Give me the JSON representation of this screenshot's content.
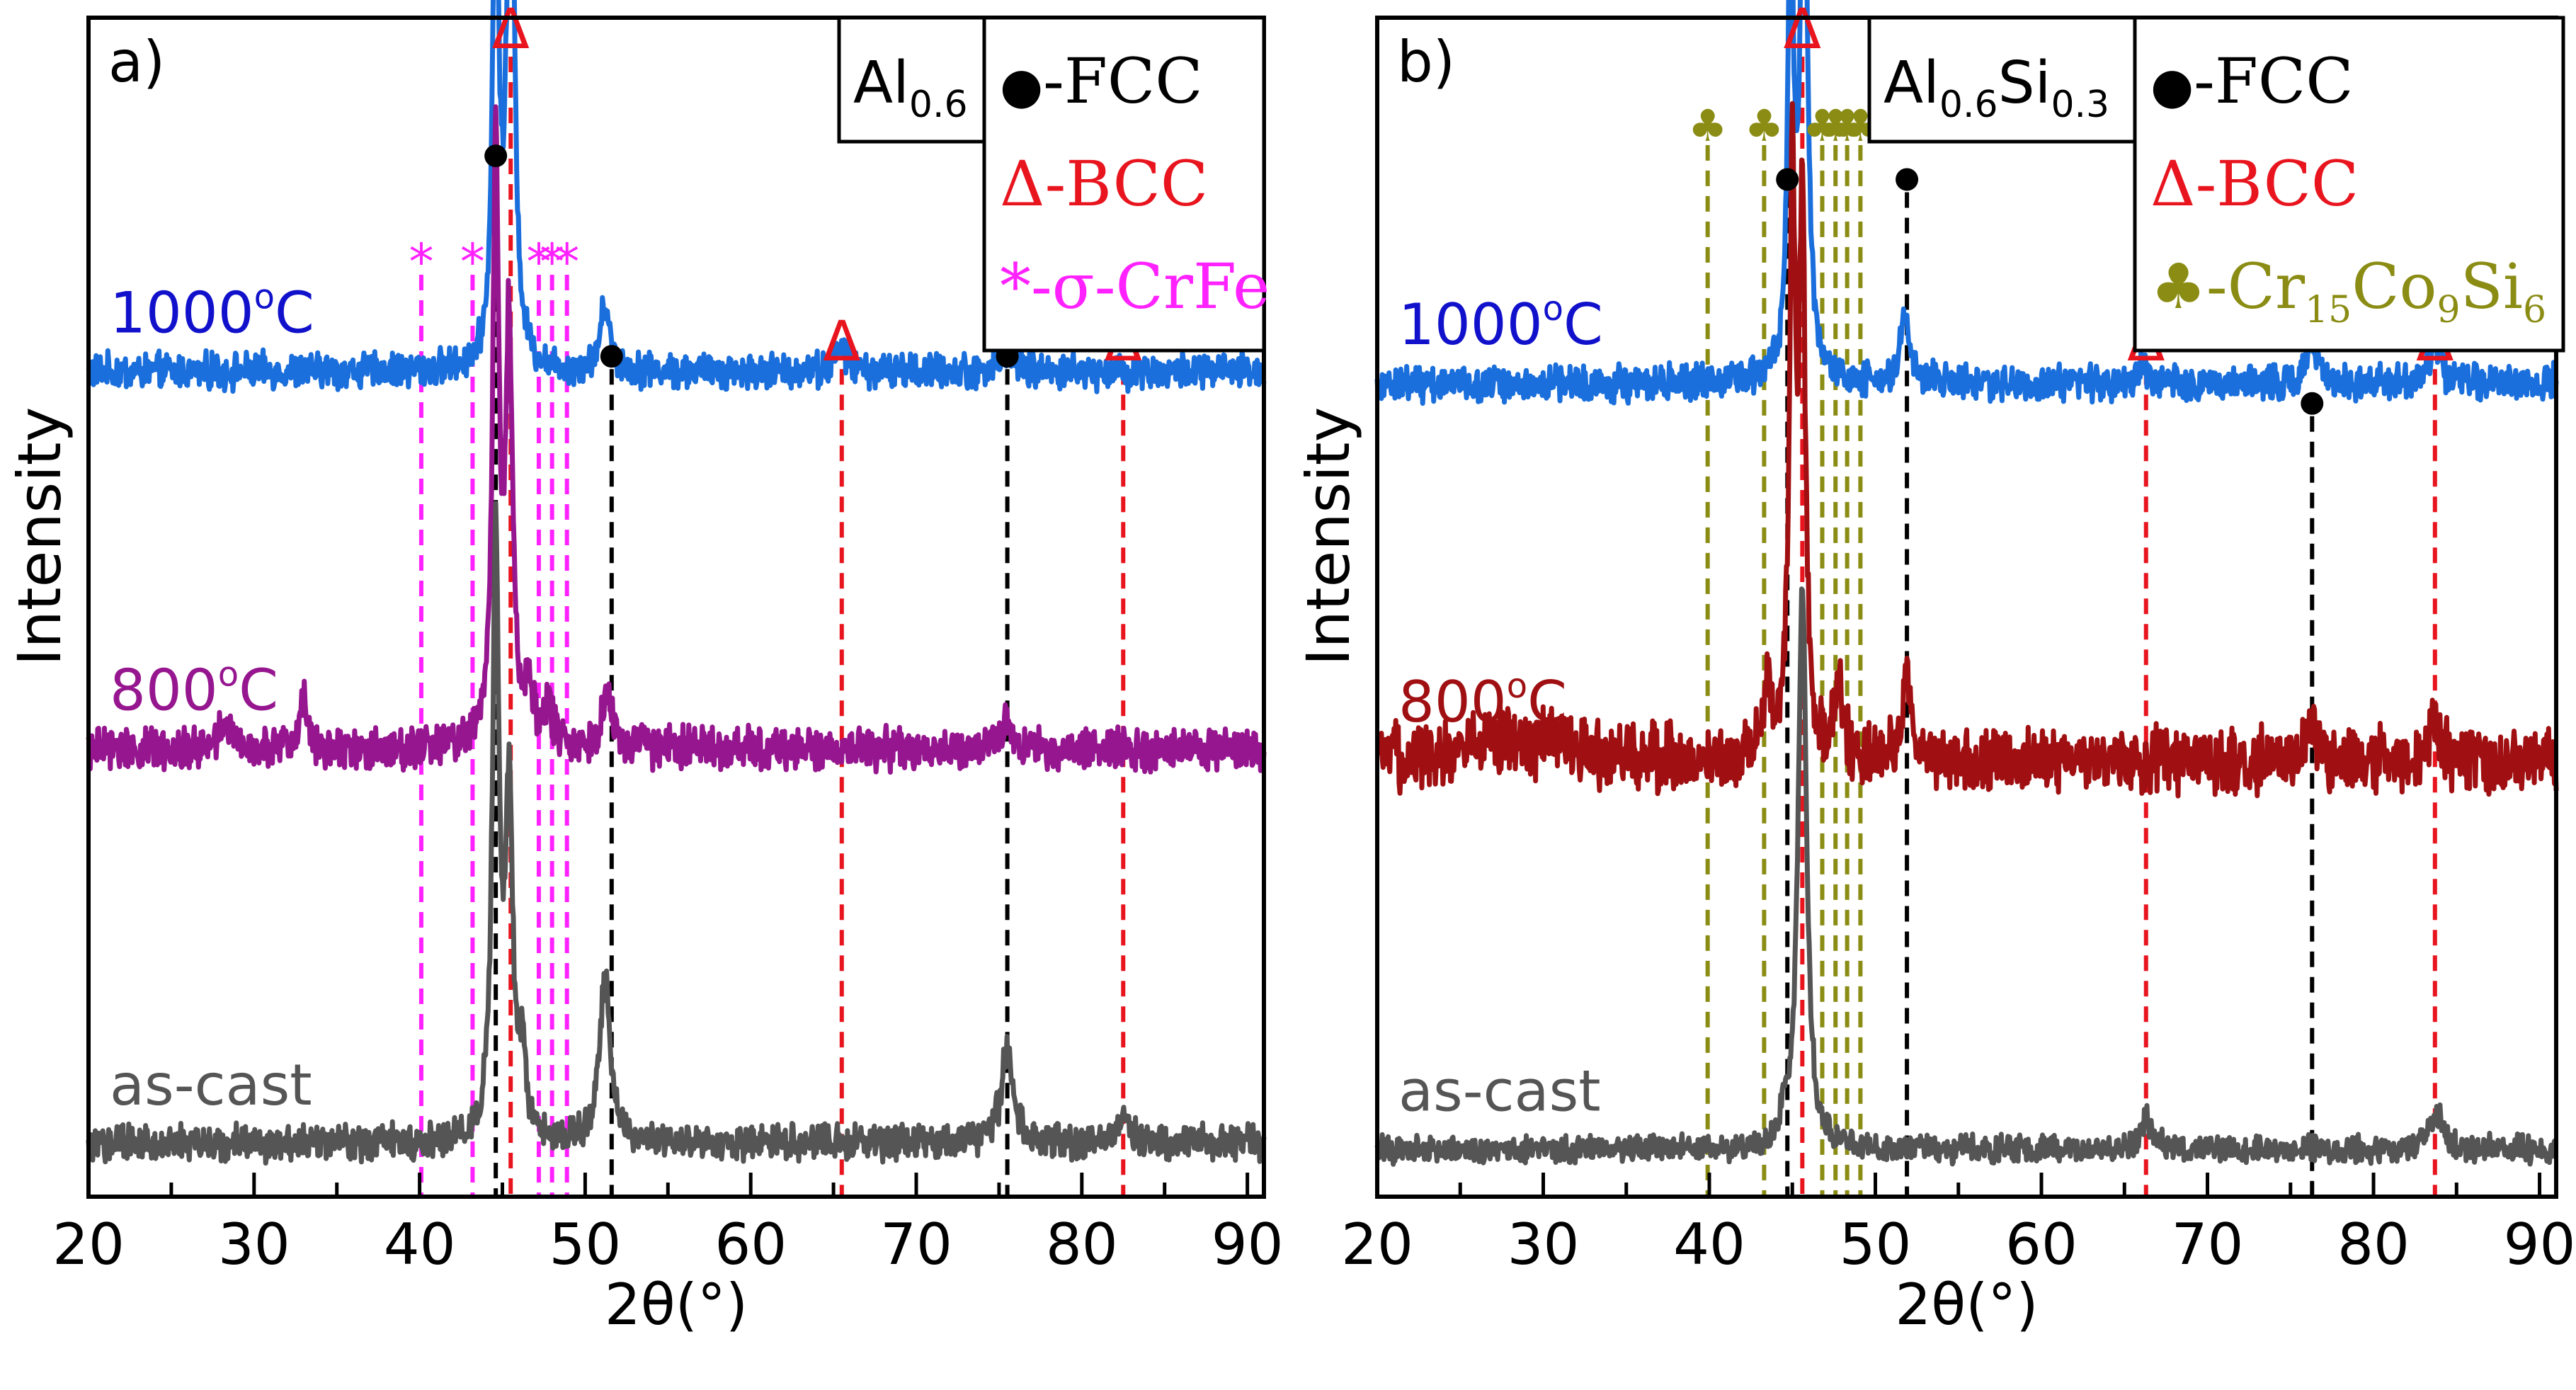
{
  "colors": {
    "c1000": "#1a6fdc",
    "c800_a": "#96168f",
    "c800_b": "#a01012",
    "cast": "#555555",
    "fcc": "#000000",
    "bcc": "#e8141e",
    "sigma": "#ff22ff",
    "crcosi": "#8a8c14",
    "label1000": "#1111cc"
  },
  "chart_data": [
    {
      "type": "line",
      "panel_label": "a)",
      "xlabel": "2θ(°)",
      "ylabel": "Intensity",
      "xlim": [
        20,
        91
      ],
      "xticks": [
        20,
        30,
        40,
        50,
        60,
        70,
        80,
        90
      ],
      "tick_labels": [
        "20",
        "30",
        "40",
        "50",
        "60",
        "70",
        "80",
        "90"
      ],
      "composition": {
        "base": "Al",
        "sub": "0.6"
      },
      "legend": [
        {
          "marker": "●",
          "text": "-FCC",
          "color_key": "fcc"
        },
        {
          "marker": "Δ",
          "text": "-BCC",
          "color_key": "bcc"
        },
        {
          "marker": "*",
          "text": "-σ-CrFe",
          "color_key": "sigma"
        }
      ],
      "series": [
        {
          "name": "1000°C",
          "label_base": "1000",
          "label_sup": "o",
          "label_end": "C",
          "color_key": "c1000",
          "label_color_key": "label1000",
          "baseline": 0.7,
          "noise": 0.012,
          "peaks": [
            [
              44.6,
              0.42,
              0.22
            ],
            [
              45.5,
              0.52,
              0.25
            ],
            [
              51.2,
              0.055,
              0.35
            ],
            [
              65.5,
              0.02,
              0.45
            ],
            [
              75.5,
              0.02,
              0.4
            ]
          ]
        },
        {
          "name": "800°C",
          "label_base": "800",
          "label_sup": "o",
          "label_end": "C",
          "color_key": "c800_a",
          "label_color_key": "c800_a",
          "baseline": 0.38,
          "noise": 0.014,
          "peaks": [
            [
              44.6,
              0.5,
              0.22
            ],
            [
              45.4,
              0.35,
              0.25
            ],
            [
              51.3,
              0.04,
              0.45
            ],
            [
              28.3,
              0.025,
              0.35
            ],
            [
              33.0,
              0.04,
              0.3
            ],
            [
              46.6,
              0.05,
              0.3
            ],
            [
              47.8,
              0.03,
              0.3
            ],
            [
              75.5,
              0.025,
              0.35
            ]
          ]
        },
        {
          "name": "as-cast",
          "label_base": "as-cast",
          "label_sup": "",
          "label_end": "",
          "color_key": "cast",
          "label_color_key": "cast",
          "baseline": 0.045,
          "noise": 0.012,
          "peaks": [
            [
              44.6,
              0.5,
              0.24
            ],
            [
              45.4,
              0.28,
              0.26
            ],
            [
              46.2,
              0.06,
              0.3
            ],
            [
              51.2,
              0.14,
              0.38
            ],
            [
              75.5,
              0.08,
              0.45
            ],
            [
              82.6,
              0.02,
              0.5
            ]
          ]
        }
      ],
      "reference_lines": [
        {
          "x": 44.6,
          "color_key": "fcc",
          "marker": "●",
          "top": 0.89
        },
        {
          "x": 51.6,
          "color_key": "fcc",
          "marker": "●",
          "top": 0.72
        },
        {
          "x": 75.5,
          "color_key": "fcc",
          "marker": "●",
          "top": 0.72
        },
        {
          "x": 45.5,
          "color_key": "bcc",
          "marker": "Δ",
          "top": 0.985
        },
        {
          "x": 65.5,
          "color_key": "bcc",
          "marker": "Δ",
          "top": 0.72
        },
        {
          "x": 82.5,
          "color_key": "bcc",
          "marker": "Δ",
          "top": 0.72
        },
        {
          "x": 40.1,
          "color_key": "sigma",
          "marker": "*",
          "top": 0.8
        },
        {
          "x": 43.2,
          "color_key": "sigma",
          "marker": "*",
          "top": 0.8
        },
        {
          "x": 47.2,
          "color_key": "sigma",
          "marker": "*",
          "top": 0.8
        },
        {
          "x": 48.0,
          "color_key": "sigma",
          "marker": "*",
          "top": 0.8
        },
        {
          "x": 48.9,
          "color_key": "sigma",
          "marker": "*",
          "top": 0.8
        }
      ]
    },
    {
      "type": "line",
      "panel_label": "b)",
      "xlabel": "2θ(°)",
      "ylabel": "Intensity",
      "xlim": [
        20,
        91
      ],
      "xticks": [
        20,
        30,
        40,
        50,
        60,
        70,
        80,
        90
      ],
      "tick_labels": [
        "20",
        "30",
        "40",
        "50",
        "60",
        "70",
        "80",
        "90"
      ],
      "composition": {
        "base": "Al",
        "sub": "0.6",
        "base2": "Si",
        "sub2": "0.3"
      },
      "legend": [
        {
          "marker": "●",
          "text": "-FCC",
          "color_key": "fcc"
        },
        {
          "marker": "Δ",
          "text": "-BCC",
          "color_key": "bcc"
        },
        {
          "marker": "♣",
          "text": "-Cr",
          "sub": "15",
          "text2": "Co",
          "sub2": "9",
          "text3": "Si",
          "sub3": "6",
          "color_key": "crcosi"
        }
      ],
      "series": [
        {
          "name": "1000°C",
          "label_base": "1000",
          "label_sup": "o",
          "label_end": "C",
          "color_key": "c1000",
          "label_color_key": "label1000",
          "baseline": 0.69,
          "noise": 0.012,
          "peaks": [
            [
              44.9,
              0.4,
              0.2
            ],
            [
              45.7,
              0.52,
              0.24
            ],
            [
              51.8,
              0.06,
              0.3
            ],
            [
              76.3,
              0.035,
              0.35
            ],
            [
              83.7,
              0.03,
              0.4
            ],
            [
              66.1,
              0.015,
              0.4
            ]
          ]
        },
        {
          "name": "800°C",
          "label_base": "800",
          "label_sup": "o",
          "label_end": "C",
          "color_key": "c800_b",
          "label_color_key": "c800_b",
          "baseline": 0.37,
          "noise": 0.022,
          "peaks": [
            [
              45.0,
              0.5,
              0.2
            ],
            [
              45.6,
              0.45,
              0.22
            ],
            [
              43.5,
              0.06,
              0.25
            ],
            [
              47.8,
              0.06,
              0.3
            ],
            [
              51.9,
              0.07,
              0.3
            ],
            [
              76.3,
              0.03,
              0.35
            ],
            [
              83.7,
              0.025,
              0.4
            ],
            [
              26.5,
              0.02,
              1.6
            ],
            [
              31.0,
              0.02,
              1.2
            ]
          ]
        },
        {
          "name": "as-cast",
          "label_base": "as-cast",
          "label_sup": "",
          "label_end": "",
          "color_key": "cast",
          "label_color_key": "cast",
          "baseline": 0.04,
          "noise": 0.009,
          "peaks": [
            [
              45.6,
              0.48,
              0.3
            ],
            [
              44.5,
              0.02,
              0.3
            ],
            [
              66.3,
              0.025,
              0.45
            ],
            [
              83.8,
              0.03,
              0.45
            ]
          ]
        }
      ],
      "reference_lines": [
        {
          "x": 44.7,
          "color_key": "fcc",
          "marker": "●",
          "top": 0.87
        },
        {
          "x": 51.9,
          "color_key": "fcc",
          "marker": "●",
          "top": 0.87
        },
        {
          "x": 76.3,
          "color_key": "fcc",
          "marker": "●",
          "top": 0.68
        },
        {
          "x": 45.6,
          "color_key": "bcc",
          "marker": "Δ",
          "top": 0.985
        },
        {
          "x": 66.3,
          "color_key": "bcc",
          "marker": "Δ",
          "top": 0.72
        },
        {
          "x": 83.7,
          "color_key": "bcc",
          "marker": "Δ",
          "top": 0.72
        },
        {
          "x": 39.9,
          "color_key": "crcosi",
          "marker": "♣",
          "top": 0.91
        },
        {
          "x": 43.3,
          "color_key": "crcosi",
          "marker": "♣",
          "top": 0.91
        },
        {
          "x": 46.8,
          "color_key": "crcosi",
          "marker": "♣",
          "top": 0.91
        },
        {
          "x": 47.6,
          "color_key": "crcosi",
          "marker": "♣",
          "top": 0.91
        },
        {
          "x": 48.3,
          "color_key": "crcosi",
          "marker": "♣",
          "top": 0.91
        },
        {
          "x": 49.1,
          "color_key": "crcosi",
          "marker": "♣",
          "top": 0.91
        }
      ]
    }
  ]
}
